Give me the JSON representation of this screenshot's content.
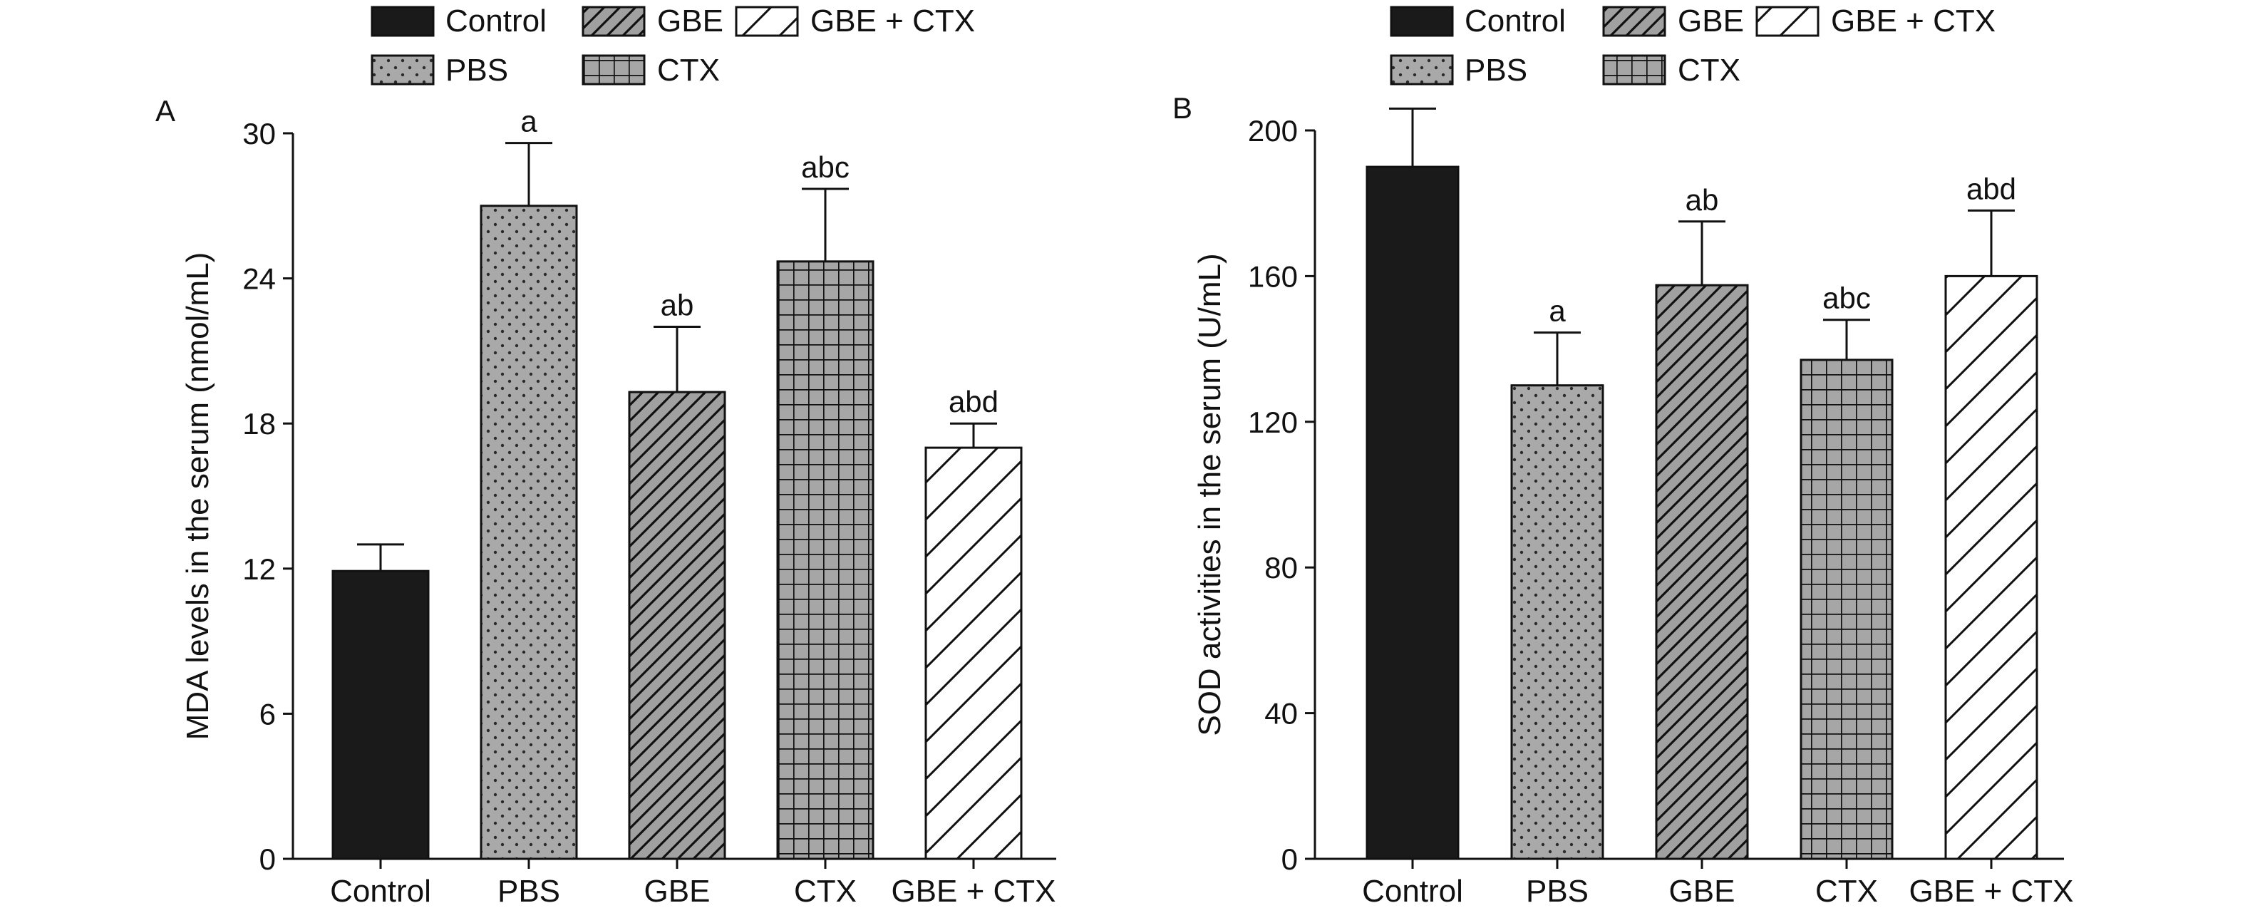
{
  "legend": {
    "items": [
      {
        "label": "Control",
        "pattern": "solid"
      },
      {
        "label": "GBE",
        "pattern": "dense-hatch"
      },
      {
        "label": "GBE + CTX",
        "pattern": "sparse-hatch"
      },
      {
        "label": "PBS",
        "pattern": "dots"
      },
      {
        "label": "CTX",
        "pattern": "grid"
      }
    ]
  },
  "colors": {
    "solid": "#1a1a1a",
    "dots_fill": "#a9a9a9",
    "hatch_fill": "#a0a0a0",
    "grid_fill": "#a6a6a6",
    "ink": "#111111"
  },
  "chart_data": [
    {
      "type": "bar",
      "panel_label": "A",
      "categories": [
        "Control",
        "PBS",
        "GBE",
        "CTX",
        "GBE + CTX"
      ],
      "patterns": [
        "solid",
        "dots",
        "dense-hatch",
        "grid",
        "sparse-hatch"
      ],
      "values": [
        11.9,
        27.0,
        19.3,
        24.7,
        17.0
      ],
      "errors": [
        1.1,
        2.6,
        2.7,
        3.0,
        1.0
      ],
      "annotations": [
        "",
        "a",
        "ab",
        "abc",
        "abd"
      ],
      "ylabel": "MDA levels in the serum (nmol/mL)",
      "xlabel": "",
      "ylim": [
        0,
        30
      ],
      "yticks": [
        0,
        6,
        12,
        18,
        24,
        30
      ],
      "grid": false
    },
    {
      "type": "bar",
      "panel_label": "B",
      "categories": [
        "Control",
        "PBS",
        "GBE",
        "CTX",
        "GBE + CTX"
      ],
      "patterns": [
        "solid",
        "dots",
        "dense-hatch",
        "grid",
        "sparse-hatch"
      ],
      "values": [
        190,
        130,
        157.5,
        137,
        160
      ],
      "errors": [
        16,
        14.5,
        17.5,
        11,
        18
      ],
      "annotations": [
        "",
        "a",
        "ab",
        "abc",
        "abd"
      ],
      "ylabel": "SOD activities in the serum (U/mL)",
      "xlabel": "",
      "ylim": [
        0,
        200
      ],
      "yticks": [
        0,
        40,
        80,
        120,
        160,
        200
      ],
      "grid": false
    }
  ]
}
